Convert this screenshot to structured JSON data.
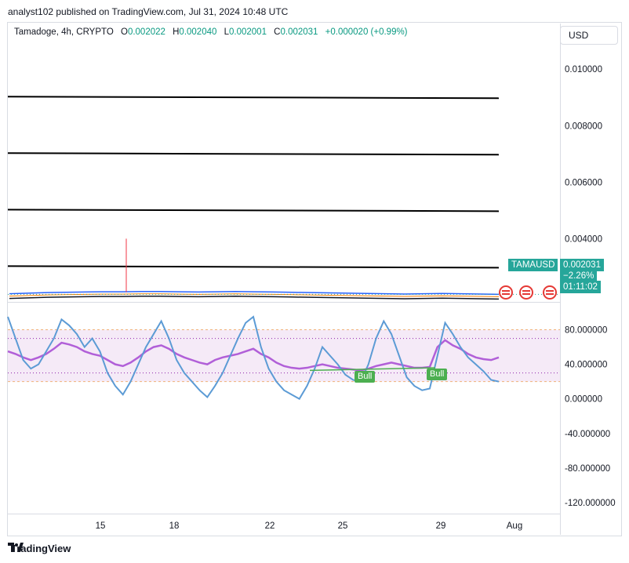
{
  "header": {
    "publisher_line": "analyst102 published on TradingView.com, Jul 31, 2024 10:48 UTC"
  },
  "legend": {
    "symbol": "Tamadoge, 4h, CRYPTO",
    "open_label": "O",
    "open": "0.002022",
    "high_label": "H",
    "high": "0.002040",
    "low_label": "L",
    "low": "0.002001",
    "close_label": "C",
    "close": "0.002031",
    "change": "+0.000020 (+0.99%)"
  },
  "currency": "USD",
  "price_tag": {
    "ticker": "TAMAUSD",
    "price": "0.002031",
    "change_pct": "−2.26%",
    "countdown": "01:11:02"
  },
  "footer": {
    "brand": "TradingView"
  },
  "colors": {
    "up": "#089981",
    "tag_bg": "#26a69a",
    "rsi_line": "#5c9bd5",
    "signal_line": "#b15fd8",
    "bull": "#4caf50"
  },
  "chart_data": [
    {
      "type": "line",
      "title": "",
      "x_ticks": [
        "15",
        "18",
        "22",
        "25",
        "29",
        "Aug"
      ],
      "y_ticks": [
        "0.010000",
        "0.008000",
        "0.006000",
        "0.004000"
      ],
      "ylim": [
        0.0019,
        0.0112
      ],
      "horizontal_levels": [
        0.009,
        0.007,
        0.005,
        0.003
      ],
      "series": [
        {
          "values": [
            0.00205,
            0.00207,
            0.00209,
            0.0021,
            0.00211,
            0.00212,
            0.00212,
            0.00213,
            0.00213,
            0.00212,
            0.00211,
            0.00212,
            0.00213,
            0.00212,
            0.00211,
            0.0021,
            0.00209,
            0.00208,
            0.00207,
            0.00206,
            0.00205,
            0.00204,
            0.00205,
            0.00206,
            0.00205,
            0.00204,
            0.00203
          ]
        }
      ],
      "spike": {
        "x": "16",
        "high": 0.004
      }
    },
    {
      "type": "line",
      "title": "",
      "y_ticks": [
        "80.000000",
        "40.000000",
        "0.000000",
        "-40.000000",
        "-80.000000",
        "-120.000000"
      ],
      "ylim": [
        -130,
        105
      ],
      "band": [
        20,
        80
      ],
      "series": [
        {
          "values": [
            95,
            70,
            45,
            35,
            40,
            55,
            70,
            92,
            85,
            75,
            60,
            70,
            55,
            30,
            15,
            5,
            20,
            40,
            60,
            75,
            90,
            70,
            45,
            30,
            20,
            10,
            2,
            15,
            30,
            50,
            70,
            88,
            95,
            60,
            35,
            20,
            10,
            5,
            0,
            15,
            35,
            60,
            50,
            40,
            28,
            22,
            20,
            40,
            70,
            90,
            75,
            50,
            25,
            15,
            10,
            12,
            50,
            88,
            75,
            60,
            48,
            40,
            32,
            22,
            20
          ]
        },
        {
          "values": [
            55,
            52,
            48,
            45,
            48,
            52,
            58,
            65,
            63,
            60,
            55,
            52,
            50,
            45,
            40,
            38,
            42,
            48,
            55,
            60,
            62,
            58,
            52,
            48,
            45,
            42,
            40,
            45,
            48,
            50,
            52,
            55,
            58,
            52,
            48,
            42,
            38,
            36,
            35,
            36,
            38,
            40,
            38,
            36,
            35,
            34,
            33,
            35,
            38,
            40,
            42,
            40,
            38,
            36,
            36,
            37,
            60,
            68,
            62,
            58,
            52,
            48,
            46,
            45,
            48
          ]
        }
      ],
      "annotations": [
        "Bull",
        "Bull"
      ]
    }
  ]
}
